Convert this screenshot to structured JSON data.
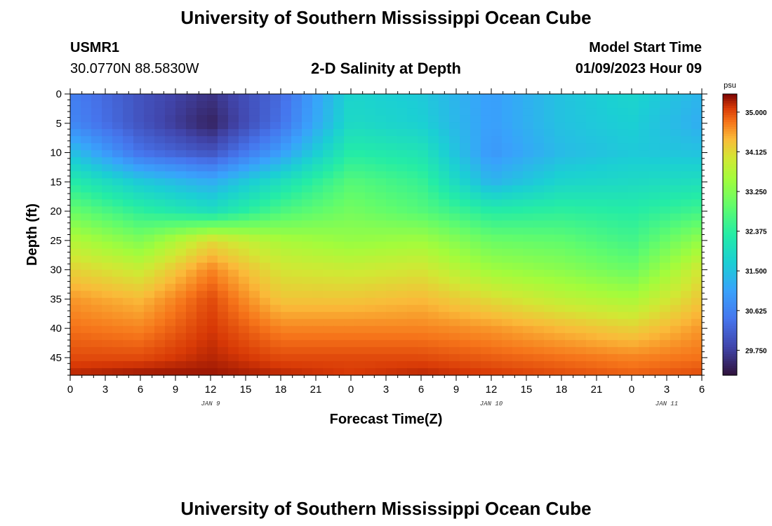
{
  "page": {
    "title_top": "University of Southern Mississippi Ocean Cube",
    "title_bottom": "University of Southern Mississippi Ocean Cube"
  },
  "header": {
    "station": "USMR1",
    "coords": "30.0770N  88.5830W",
    "plot_title": "2-D Salinity at Depth",
    "model_label": "Model Start Time",
    "model_time": "01/09/2023 Hour 09"
  },
  "chart_data": {
    "type": "heatmap",
    "title": "2-D Salinity at Depth",
    "xlabel": "Forecast Time(Z)",
    "ylabel": "Depth (ft)",
    "x_tick_labels": [
      "0",
      "3",
      "6",
      "9",
      "12",
      "15",
      "18",
      "21",
      "0",
      "3",
      "6",
      "9",
      "12",
      "15",
      "18",
      "21",
      "0",
      "3",
      "6"
    ],
    "date_labels": [
      {
        "text": "JAN 9",
        "at_hour": 12
      },
      {
        "text": "JAN 10",
        "at_hour": 36
      },
      {
        "text": "JAN 11",
        "at_hour": 51
      }
    ],
    "x_range": [
      0,
      54
    ],
    "y_ticks": [
      0,
      5,
      10,
      15,
      20,
      25,
      30,
      35,
      40,
      45
    ],
    "y_range": [
      0,
      48
    ],
    "colorbar": {
      "unit": "psu",
      "ticks": [
        "35.000",
        "34.125",
        "33.250",
        "32.375",
        "31.500",
        "30.625",
        "29.750"
      ],
      "min": 29.2,
      "max": 35.4
    },
    "x_hours": [
      0,
      6,
      12,
      18,
      24,
      30,
      36,
      42,
      48,
      54
    ],
    "depths_ft": [
      0,
      5,
      10,
      15,
      20,
      25,
      30,
      35,
      40,
      45,
      48
    ],
    "salinity_psu": [
      [
        30.6,
        30.0,
        29.6,
        30.3,
        31.8,
        31.6,
        31.0,
        31.5,
        31.8,
        31.3
      ],
      [
        30.7,
        30.0,
        29.4,
        30.4,
        31.9,
        31.7,
        31.0,
        31.5,
        31.7,
        31.2
      ],
      [
        31.5,
        30.4,
        30.0,
        31.0,
        32.3,
        32.1,
        30.9,
        31.4,
        31.6,
        31.5
      ],
      [
        32.3,
        31.6,
        31.2,
        32.0,
        32.8,
        32.5,
        31.3,
        31.8,
        31.9,
        32.0
      ],
      [
        33.0,
        32.4,
        32.0,
        32.7,
        33.1,
        32.8,
        32.3,
        32.4,
        32.3,
        32.6
      ],
      [
        33.7,
        33.2,
        34.1,
        33.6,
        33.4,
        33.5,
        33.0,
        32.9,
        32.6,
        33.4
      ],
      [
        34.2,
        33.9,
        34.7,
        34.0,
        33.9,
        34.0,
        33.5,
        33.3,
        33.0,
        34.0
      ],
      [
        34.6,
        34.4,
        35.0,
        34.3,
        34.3,
        34.4,
        34.1,
        33.8,
        33.6,
        34.3
      ],
      [
        34.8,
        34.7,
        35.1,
        34.7,
        34.7,
        34.7,
        34.6,
        34.4,
        34.2,
        34.6
      ],
      [
        35.0,
        35.0,
        35.2,
        35.0,
        35.0,
        35.0,
        34.9,
        34.8,
        34.7,
        34.8
      ],
      [
        35.2,
        35.3,
        35.3,
        35.2,
        35.1,
        35.2,
        35.1,
        35.0,
        34.9,
        35.0
      ]
    ]
  }
}
